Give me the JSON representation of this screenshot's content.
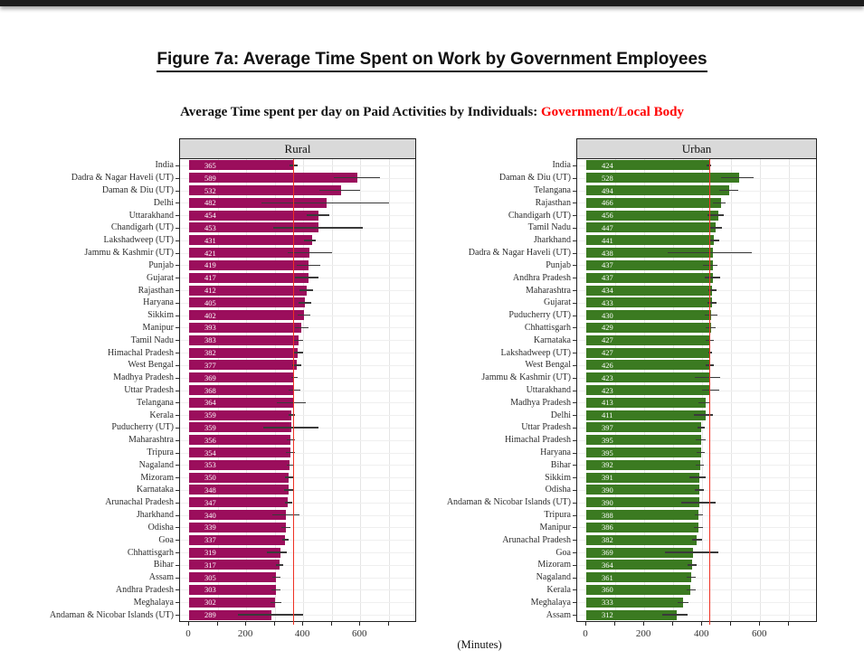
{
  "title": "Figure 7a: Average Time Spent on Work by Government Employees",
  "subtitle": {
    "prefix": "Average Time spent per day on Paid Activities by Individuals:",
    "highlight": "Government/Local Body",
    "highlight_color": "#FF0000"
  },
  "xlabel": "(Minutes)",
  "axis": {
    "ticks": [
      0,
      200,
      400,
      600
    ],
    "minor_ticks": [
      100,
      300,
      500,
      700
    ],
    "domain_max": 780
  },
  "colors": {
    "rural_bar": "#9B0E5C",
    "urban_bar": "#3B7A21",
    "ref_line": "#EE3224",
    "panel_header_bg": "#D9D9D9",
    "error_bar": "#3a3a3a"
  },
  "chart_data": [
    {
      "type": "bar",
      "orientation": "horizontal",
      "panel": "Rural",
      "unit": "Minutes",
      "ref_line": 365,
      "bar_color": "#9B0E5C",
      "xlim": [
        0,
        780
      ],
      "rows": [
        {
          "label": "India",
          "value": 365,
          "ci": [
            352,
            380
          ]
        },
        {
          "label": "Dadra & Nagar Haveli (UT)",
          "value": 589,
          "ci": [
            508,
            670
          ]
        },
        {
          "label": "Daman & Diu (UT)",
          "value": 532,
          "ci": [
            455,
            600
          ]
        },
        {
          "label": "Delhi",
          "value": 482,
          "ci": [
            255,
            700
          ]
        },
        {
          "label": "Uttarakhand",
          "value": 454,
          "ci": [
            413,
            490
          ]
        },
        {
          "label": "Chandigarh (UT)",
          "value": 453,
          "ci": [
            295,
            608
          ]
        },
        {
          "label": "Lakshadweep (UT)",
          "value": 431,
          "ci": [
            403,
            445
          ]
        },
        {
          "label": "Jammu & Kashmir (UT)",
          "value": 421,
          "ci": [
            346,
            500
          ]
        },
        {
          "label": "Punjab",
          "value": 419,
          "ci": [
            377,
            460
          ]
        },
        {
          "label": "Gujarat",
          "value": 417,
          "ci": [
            372,
            455
          ]
        },
        {
          "label": "Rajasthan",
          "value": 412,
          "ci": [
            387,
            435
          ]
        },
        {
          "label": "Haryana",
          "value": 405,
          "ci": [
            383,
            428
          ]
        },
        {
          "label": "Sikkim",
          "value": 402,
          "ci": [
            380,
            425
          ]
        },
        {
          "label": "Manipur",
          "value": 393,
          "ci": [
            370,
            418
          ]
        },
        {
          "label": "Tamil Nadu",
          "value": 383,
          "ci": [
            368,
            398
          ]
        },
        {
          "label": "Himachal Pradesh",
          "value": 382,
          "ci": [
            365,
            400
          ]
        },
        {
          "label": "West Bengal",
          "value": 377,
          "ci": [
            362,
            393
          ]
        },
        {
          "label": "Madhya Pradesh",
          "value": 369,
          "ci": [
            357,
            382
          ]
        },
        {
          "label": "Uttar Pradesh",
          "value": 368,
          "ci": [
            350,
            390
          ]
        },
        {
          "label": "Telangana",
          "value": 364,
          "ci": [
            308,
            410
          ]
        },
        {
          "label": "Kerala",
          "value": 359,
          "ci": [
            348,
            372
          ]
        },
        {
          "label": "Puducherry (UT)",
          "value": 359,
          "ci": [
            260,
            452
          ]
        },
        {
          "label": "Maharashtra",
          "value": 356,
          "ci": [
            342,
            371
          ]
        },
        {
          "label": "Tripura",
          "value": 354,
          "ci": [
            338,
            372
          ]
        },
        {
          "label": "Nagaland",
          "value": 353,
          "ci": [
            343,
            365
          ]
        },
        {
          "label": "Mizoram",
          "value": 350,
          "ci": [
            336,
            366
          ]
        },
        {
          "label": "Karnataka",
          "value": 348,
          "ci": [
            334,
            364
          ]
        },
        {
          "label": "Arunachal Pradesh",
          "value": 347,
          "ci": [
            336,
            360
          ]
        },
        {
          "label": "Jharkhand",
          "value": 340,
          "ci": [
            292,
            386
          ]
        },
        {
          "label": "Odisha",
          "value": 339,
          "ci": [
            322,
            356
          ]
        },
        {
          "label": "Goa",
          "value": 337,
          "ci": [
            326,
            350
          ]
        },
        {
          "label": "Chhattisgarh",
          "value": 319,
          "ci": [
            272,
            342
          ]
        },
        {
          "label": "Bihar",
          "value": 317,
          "ci": [
            305,
            330
          ]
        },
        {
          "label": "Assam",
          "value": 305,
          "ci": [
            292,
            320
          ]
        },
        {
          "label": "Andhra Pradesh",
          "value": 303,
          "ci": [
            288,
            320
          ]
        },
        {
          "label": "Meghalaya",
          "value": 302,
          "ci": [
            285,
            325
          ]
        },
        {
          "label": "Andaman & Nicobar Islands (UT)",
          "value": 289,
          "ci": [
            172,
            400
          ]
        }
      ]
    },
    {
      "type": "bar",
      "orientation": "horizontal",
      "panel": "Urban",
      "unit": "Minutes",
      "ref_line": 424,
      "bar_color": "#3B7A21",
      "xlim": [
        0,
        780
      ],
      "rows": [
        {
          "label": "India",
          "value": 424,
          "ci": [
            416,
            432
          ]
        },
        {
          "label": "Daman & Diu (UT)",
          "value": 528,
          "ci": [
            465,
            578
          ]
        },
        {
          "label": "Telangana",
          "value": 494,
          "ci": [
            458,
            524
          ]
        },
        {
          "label": "Rajasthan",
          "value": 466,
          "ci": [
            438,
            480
          ]
        },
        {
          "label": "Chandigarh (UT)",
          "value": 456,
          "ci": [
            418,
            474
          ]
        },
        {
          "label": "Tamil Nadu",
          "value": 447,
          "ci": [
            423,
            469
          ]
        },
        {
          "label": "Jharkhand",
          "value": 441,
          "ci": [
            425,
            458
          ]
        },
        {
          "label": "Dadra & Nagar Haveli (UT)",
          "value": 438,
          "ci": [
            282,
            572
          ]
        },
        {
          "label": "Punjab",
          "value": 437,
          "ci": [
            402,
            453
          ]
        },
        {
          "label": "Andhra Pradesh",
          "value": 437,
          "ci": [
            408,
            462
          ]
        },
        {
          "label": "Maharashtra",
          "value": 434,
          "ci": [
            420,
            448
          ]
        },
        {
          "label": "Gujarat",
          "value": 433,
          "ci": [
            418,
            448
          ]
        },
        {
          "label": "Puducherry (UT)",
          "value": 430,
          "ci": [
            408,
            452
          ]
        },
        {
          "label": "Chhattisgarh",
          "value": 429,
          "ci": [
            412,
            446
          ]
        },
        {
          "label": "Karnataka",
          "value": 427,
          "ci": [
            413,
            441
          ]
        },
        {
          "label": "Lakshadweep (UT)",
          "value": 427,
          "ci": [
            420,
            435
          ]
        },
        {
          "label": "West Bengal",
          "value": 426,
          "ci": [
            412,
            440
          ]
        },
        {
          "label": "Jammu & Kashmir (UT)",
          "value": 423,
          "ci": [
            375,
            462
          ]
        },
        {
          "label": "Uttarakhand",
          "value": 423,
          "ci": [
            400,
            460
          ]
        },
        {
          "label": "Madhya Pradesh",
          "value": 413,
          "ci": [
            388,
            428
          ]
        },
        {
          "label": "Delhi",
          "value": 411,
          "ci": [
            372,
            438
          ]
        },
        {
          "label": "Uttar Pradesh",
          "value": 397,
          "ci": [
            385,
            410
          ]
        },
        {
          "label": "Himachal Pradesh",
          "value": 395,
          "ci": [
            378,
            412
          ]
        },
        {
          "label": "Haryana",
          "value": 395,
          "ci": [
            380,
            410
          ]
        },
        {
          "label": "Bihar",
          "value": 392,
          "ci": [
            378,
            406
          ]
        },
        {
          "label": "Sikkim",
          "value": 391,
          "ci": [
            355,
            412
          ]
        },
        {
          "label": "Odisha",
          "value": 390,
          "ci": [
            375,
            405
          ]
        },
        {
          "label": "Andaman & Nicobar Islands (UT)",
          "value": 390,
          "ci": [
            328,
            446
          ]
        },
        {
          "label": "Tripura",
          "value": 388,
          "ci": [
            375,
            402
          ]
        },
        {
          "label": "Manipur",
          "value": 386,
          "ci": [
            370,
            404
          ]
        },
        {
          "label": "Arunachal Pradesh",
          "value": 382,
          "ci": [
            365,
            400
          ]
        },
        {
          "label": "Goa",
          "value": 369,
          "ci": [
            272,
            456
          ]
        },
        {
          "label": "Mizoram",
          "value": 364,
          "ci": [
            350,
            380
          ]
        },
        {
          "label": "Nagaland",
          "value": 361,
          "ci": [
            345,
            378
          ]
        },
        {
          "label": "Kerala",
          "value": 360,
          "ci": [
            346,
            376
          ]
        },
        {
          "label": "Meghalaya",
          "value": 333,
          "ci": [
            315,
            352
          ]
        },
        {
          "label": "Assam",
          "value": 312,
          "ci": [
            262,
            350
          ]
        }
      ]
    }
  ]
}
